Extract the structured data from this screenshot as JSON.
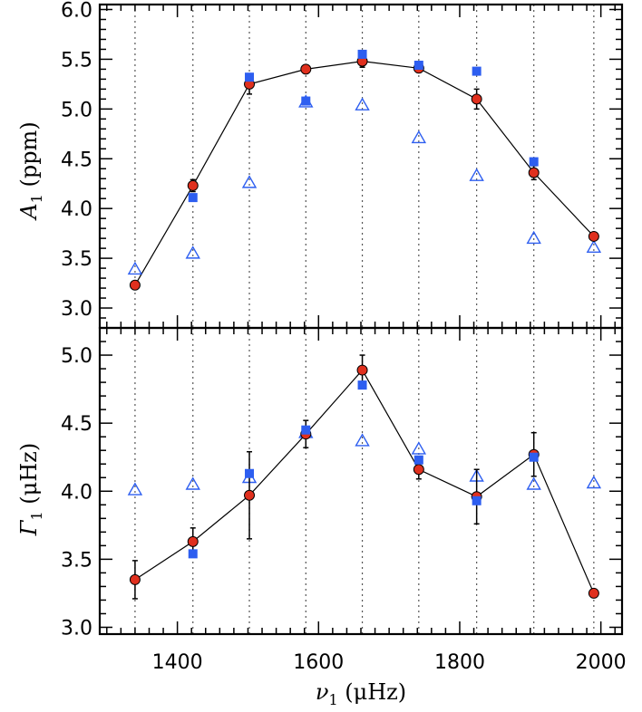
{
  "chart_data": {
    "type": "scatter",
    "x_label_parts": {
      "symbol": "ν",
      "sub": "1",
      "units": "(μHz)"
    },
    "xlim": [
      1290,
      2030
    ],
    "x_ticks": [
      1400,
      1600,
      1800,
      2000
    ],
    "x_tick_labels": [
      "1400",
      "1600",
      "1800",
      "2000"
    ],
    "vlines": [
      1340,
      1422,
      1502,
      1582,
      1662,
      1742,
      1824,
      1905,
      1990
    ],
    "colors": {
      "model": "#e0301e",
      "square": "#2d5ef0",
      "triangle": "#2d5ef0",
      "line": "#000000",
      "vline": "#555555"
    },
    "panels": [
      {
        "id": "amplitude",
        "ylabel_parts": {
          "symbol": "A",
          "sub": "1",
          "units": "(ppm)"
        },
        "ylim": [
          2.8,
          6.05
        ],
        "y_ticks": [
          3.0,
          3.5,
          4.0,
          4.5,
          5.0,
          5.5,
          6.0
        ],
        "y_tick_labels": [
          "3.0",
          "3.5",
          "4.0",
          "4.5",
          "5.0",
          "5.5",
          "6.0"
        ],
        "series": [
          {
            "name": "red-circles",
            "marker": "circle",
            "x": [
              1340,
              1422,
              1502,
              1582,
              1662,
              1742,
              1824,
              1905,
              1990
            ],
            "y": [
              3.23,
              4.23,
              5.25,
              5.4,
              5.48,
              5.41,
              5.1,
              4.36,
              3.72
            ],
            "err": [
              0.03,
              0.06,
              0.1,
              0.04,
              0.06,
              0.04,
              0.1,
              0.07,
              0.03
            ]
          },
          {
            "name": "blue-squares",
            "marker": "square",
            "x": [
              1422,
              1502,
              1582,
              1662,
              1742,
              1824,
              1905
            ],
            "y": [
              4.11,
              5.32,
              5.08,
              5.55,
              5.44,
              5.38,
              4.47
            ]
          },
          {
            "name": "open-triangles",
            "marker": "triangle",
            "x": [
              1340,
              1422,
              1502,
              1582,
              1662,
              1742,
              1824,
              1905,
              1990
            ],
            "y": [
              3.39,
              3.55,
              4.26,
              5.07,
              5.04,
              4.71,
              4.33,
              3.7,
              3.61
            ]
          }
        ]
      },
      {
        "id": "linewidth",
        "ylabel_parts": {
          "symbol": "Γ",
          "sub": "1",
          "units": "(μHz)"
        },
        "ylim": [
          2.95,
          5.2
        ],
        "y_ticks": [
          3.0,
          3.5,
          4.0,
          4.5,
          5.0
        ],
        "y_tick_labels": [
          "3.0",
          "3.5",
          "4.0",
          "4.5",
          "5.0"
        ],
        "series": [
          {
            "name": "red-circles",
            "marker": "circle",
            "x": [
              1340,
              1422,
              1502,
              1582,
              1662,
              1742,
              1824,
              1905,
              1990
            ],
            "y": [
              3.35,
              3.63,
              3.97,
              4.42,
              4.89,
              4.16,
              3.96,
              4.27,
              3.25
            ],
            "err": [
              0.14,
              0.1,
              0.32,
              0.1,
              0.11,
              0.07,
              0.2,
              0.16,
              0.02
            ]
          },
          {
            "name": "blue-squares",
            "marker": "square",
            "x": [
              1422,
              1502,
              1582,
              1662,
              1742,
              1824,
              1905
            ],
            "y": [
              3.54,
              4.13,
              4.45,
              4.78,
              4.23,
              3.93,
              4.25
            ]
          },
          {
            "name": "open-triangles",
            "marker": "triangle",
            "x": [
              1340,
              1422,
              1502,
              1582,
              1662,
              1742,
              1824,
              1905,
              1990
            ],
            "y": [
              4.01,
              4.05,
              4.1,
              4.43,
              4.37,
              4.31,
              4.11,
              4.05,
              4.06
            ]
          }
        ]
      }
    ]
  }
}
